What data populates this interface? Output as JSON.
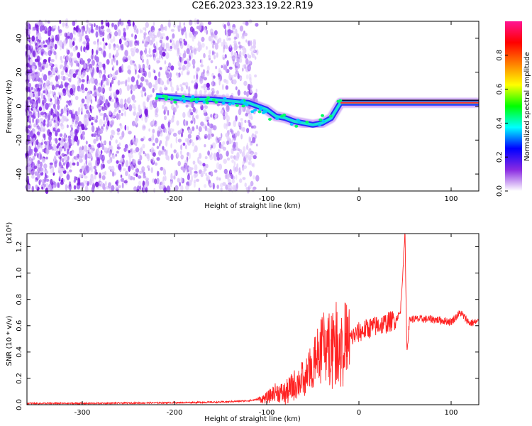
{
  "title": "C2E6.2023.323.19.22.R19",
  "chart_data": [
    {
      "type": "heatmap",
      "xlabel": "Height of straight line (km)",
      "ylabel": "Frequency (Hz)",
      "xlim": [
        -360,
        130
      ],
      "ylim": [
        -50,
        50
      ],
      "xticks": [
        -300,
        -200,
        -100,
        0,
        100
      ],
      "yticks": [
        -40,
        -20,
        0,
        20,
        40
      ],
      "colorbar": {
        "label": "Normalized spectral amplitude",
        "range": [
          0.0,
          1.0
        ],
        "ticks": [
          "0.0",
          "0.2",
          "0.4",
          "0.6",
          "0.8"
        ],
        "tick_values": [
          0.0,
          0.2,
          0.4,
          0.6,
          0.8
        ],
        "colors": [
          "#ffffff",
          "#8a2be2",
          "#0000ff",
          "#00ffff",
          "#00ff00",
          "#ffff00",
          "#ff7f00",
          "#ff0000",
          "#ff1493"
        ]
      },
      "trace": {
        "x": [
          -220,
          -200,
          -180,
          -160,
          -140,
          -120,
          -100,
          -90,
          -80,
          -70,
          -60,
          -50,
          -40,
          -30,
          -20,
          0,
          20,
          40,
          60,
          80,
          100,
          130
        ],
        "y": [
          6,
          5,
          4,
          4,
          3,
          2,
          -2,
          -6,
          -7,
          -9,
          -10,
          -11,
          -10,
          -7,
          2,
          2,
          2,
          2,
          2,
          2,
          2,
          2
        ]
      }
    },
    {
      "type": "line",
      "xlabel": "Height of straight line (km)",
      "ylabel": "SNR (10 * v/v)",
      "scale_label": "(x10⁴)",
      "xlim": [
        -360,
        130
      ],
      "ylim": [
        0,
        1.3
      ],
      "xticks": [
        -300,
        -200,
        -100,
        0,
        100
      ],
      "yticks": [
        "0.0",
        "0.2",
        "0.4",
        "0.6",
        "0.8",
        "1.0",
        "1.2"
      ],
      "ytick_values": [
        0.0,
        0.2,
        0.4,
        0.6,
        0.8,
        1.0,
        1.2
      ],
      "color": "#ff2222",
      "x": [
        -360,
        -300,
        -200,
        -150,
        -120,
        -100,
        -90,
        -80,
        -70,
        -60,
        -50,
        -40,
        -30,
        -20,
        -10,
        0,
        10,
        20,
        30,
        40,
        45,
        50,
        52,
        55,
        60,
        80,
        100,
        110,
        120,
        130
      ],
      "y": [
        0.01,
        0.01,
        0.015,
        0.02,
        0.03,
        0.05,
        0.1,
        0.08,
        0.15,
        0.2,
        0.3,
        0.5,
        0.55,
        0.55,
        0.5,
        0.55,
        0.58,
        0.6,
        0.62,
        0.65,
        0.7,
        1.3,
        0.4,
        0.65,
        0.65,
        0.65,
        0.63,
        0.7,
        0.62,
        0.63
      ]
    }
  ]
}
